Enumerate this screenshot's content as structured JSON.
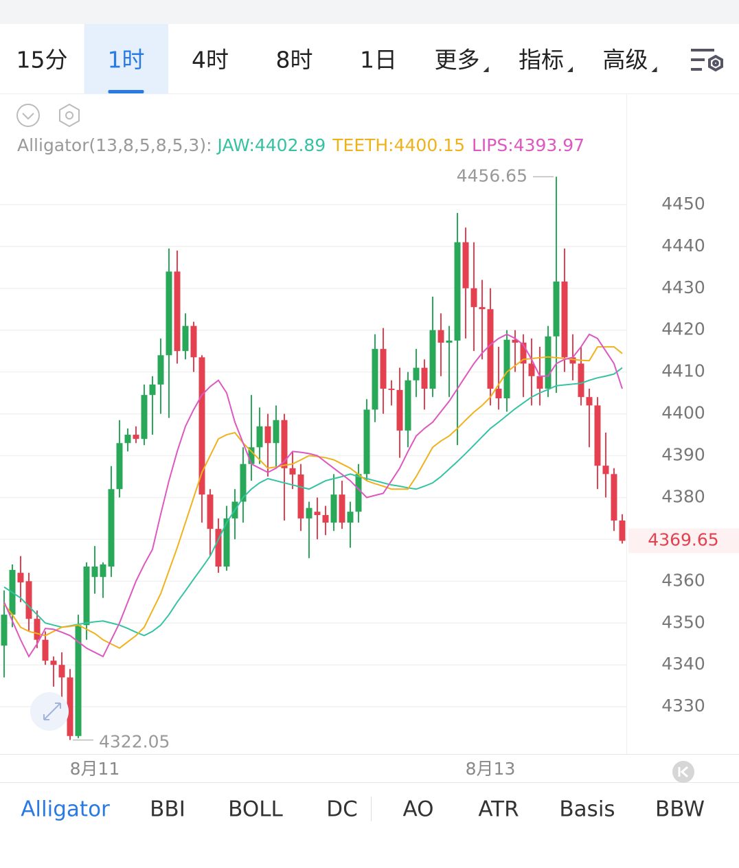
{
  "tabs": {
    "items": [
      "15分",
      "1时",
      "4时",
      "8时",
      "1日",
      "更多",
      "指标",
      "高级"
    ],
    "active": 1,
    "dropdowns": [
      5,
      6,
      7
    ]
  },
  "chart_data": {
    "type": "candlestick",
    "indicator_title": "Alligator(13,8,5,8,5,3):",
    "categories": [
      null,
      null,
      null,
      null,
      null,
      null,
      null,
      null,
      null,
      null,
      null,
      "8月11",
      null,
      null,
      null,
      null,
      null,
      null,
      null,
      null,
      null,
      null,
      null,
      null,
      null,
      null,
      null,
      null,
      null,
      null,
      null,
      null,
      null,
      null,
      null,
      null,
      null,
      null,
      null,
      null,
      null,
      null,
      null,
      null,
      null,
      null,
      null,
      null,
      null,
      null,
      null,
      null,
      null,
      null,
      null,
      null,
      null,
      null,
      null,
      "8月13",
      null,
      null,
      null,
      null,
      null,
      null,
      null,
      null,
      null,
      null,
      null,
      null,
      null,
      null,
      null,
      null
    ],
    "open": [
      4344.6,
      4352,
      4362,
      4360,
      4351,
      4346,
      4341,
      4340,
      4337,
      4323,
      4349.5,
      4361,
      4361,
      4363.5,
      4382,
      4393,
      4395,
      4394,
      4404.5,
      4407,
      4414,
      4434,
      4415,
      4421,
      4413.5,
      4380.7,
      4372.5,
      4363.5,
      4375,
      4379,
      4388,
      4392,
      4397,
      4393,
      4398.5,
      4387,
      4385.5,
      4375,
      4376.6,
      4375.8,
      4374,
      4380.7,
      4374,
      4376.6,
      4385.6,
      4401,
      4415.5,
      4406,
      4405.7,
      4396,
      4408,
      4411,
      4406,
      4420,
      4417,
      4417.5,
      4441,
      4430,
      4425.5,
      4425,
      4406,
      4403.7,
      4417.7,
      4417,
      4412,
      4409,
      4406,
      4418.5,
      4431.6,
      4413.5,
      4412,
      4404,
      4402,
      4387.6,
      4385.6,
      4374.5
    ],
    "high": [
      4357.8,
      4364,
      4366,
      4362,
      4353,
      4348,
      4342,
      4343,
      4339,
      4352,
      4364.5,
      4368.4,
      4364.5,
      4387.5,
      4398.5,
      4396.5,
      4397,
      4407,
      4409,
      4418,
      4439.5,
      4439,
      4424,
      4422,
      4414,
      4382,
      4375,
      4378,
      4382,
      4392,
      4404.5,
      4401.5,
      4400,
      4402,
      4400,
      4391,
      4388,
      4379,
      4380,
      4378,
      4385.6,
      4384,
      4379,
      4388,
      4403.5,
      4419,
      4420.5,
      4408,
      4411,
      4410,
      4415.5,
      4413,
      4428,
      4424,
      4421,
      4448,
      4444.5,
      4441,
      4432,
      4430,
      4416,
      4420,
      4420,
      4419,
      4418,
      4416,
      4421,
      4456.65,
      4439.5,
      4419,
      4416,
      4406,
      4404,
      4395.5,
      4387,
      4376
    ],
    "low": [
      4337,
      4349,
      4355,
      4348,
      4344,
      4340,
      4334.8,
      4332,
      4322.05,
      4322.5,
      4346,
      4357,
      4356,
      4361,
      4380,
      4391,
      4393,
      4392.5,
      4395,
      4400,
      4399,
      4412,
      4413,
      4410,
      4374,
      4366,
      4362,
      4362.5,
      4370,
      4374,
      4384,
      4388,
      4385,
      4387,
      4374.5,
      4382,
      4372,
      4365.5,
      4370,
      4371,
      4372,
      4372.5,
      4368,
      4374,
      4384,
      4398,
      4400,
      4402,
      4389.5,
      4392,
      4404,
      4401,
      4404,
      4409,
      4404,
      4392.5,
      4418,
      4415,
      4413,
      4402,
      4401,
      4400.5,
      4410,
      4404,
      4402,
      4402,
      4404,
      4405,
      4410,
      4408,
      4402,
      4392,
      4382,
      4380,
      4372,
      4369
    ],
    "close": [
      4352,
      4362.7,
      4359.7,
      4351,
      4346,
      4341,
      4340,
      4337,
      4323,
      4349.5,
      4363.5,
      4363.5,
      4364,
      4382,
      4393,
      4395,
      4394,
      4404.5,
      4407,
      4414,
      4434,
      4415,
      4421,
      4413.5,
      4380.7,
      4372.5,
      4363.5,
      4375,
      4379,
      4388,
      4392,
      4397,
      4393,
      4398.5,
      4387,
      4385.5,
      4375,
      4377.5,
      4375.8,
      4374,
      4380.7,
      4374,
      4376.6,
      4385.6,
      4401,
      4415.5,
      4406,
      4405.7,
      4396,
      4408,
      4411,
      4406,
      4420,
      4417,
      4417.5,
      4441,
      4430,
      4425.5,
      4425,
      4406,
      4403.7,
      4417.7,
      4417,
      4412,
      4409,
      4406,
      4418.5,
      4431.6,
      4413.5,
      4412,
      4404,
      4402,
      4387.6,
      4385.6,
      4374.5,
      4369.65
    ],
    "up_color": "#2aa85a",
    "down_color": "#e3414f",
    "series": [
      {
        "name": "JAW:4402.89",
        "color": "#35c2a2",
        "values": [
          4358.6,
          4357.3,
          4356,
          4354,
          4352,
          4350,
          4349.5,
          4349,
          4349.3,
          4349.7,
          4350,
          4350.3,
          4350.5,
          4350,
          4349.5,
          4348.7,
          4347.8,
          4347,
          4348,
          4349.5,
          4352,
          4355,
          4357.7,
          4360.5,
          4363.2,
          4366,
          4370,
          4374,
          4377,
          4380,
          4382,
          4383.5,
          4384.5,
          4384,
          4383.5,
          4383,
          4382.5,
          4382,
          4383,
          4384,
          4384.5,
          4385,
          4385.6,
          4385,
          4384.5,
          4384,
          4383.5,
          4383,
          4382.7,
          4382.3,
          4382,
          4382.7,
          4383.5,
          4385,
          4386.8,
          4388.6,
          4390.5,
          4392.5,
          4394.5,
          4396.5,
          4398,
          4399.6,
          4401.2,
          4402.6,
          4404,
          4405,
          4405.8,
          4406.7,
          4406.9,
          4407.1,
          4407.3,
          4408,
          4408.6,
          4409,
          4409.5,
          4411
        ]
      },
      {
        "name": "TEETH:4400.15",
        "color": "#efb21c",
        "values": [
          4354.5,
          4352,
          4349,
          4348,
          4347.5,
          4347,
          4348,
          4349,
          4349.2,
          4349.5,
          4348.5,
          4347.5,
          4346,
          4345,
          4344,
          4345.5,
          4347,
          4349,
          4353,
          4357,
          4362.5,
          4368,
          4374,
          4380,
          4386,
          4390,
          4394,
          4395,
          4395.5,
          4393,
          4391,
          4389,
          4387,
          4387.3,
          4387.7,
          4388,
          4389,
          4390,
          4389.8,
          4389.5,
          4389,
          4388,
          4387,
          4385.5,
          4384,
          4383.3,
          4382.7,
          4382,
          4382,
          4382,
          4385,
          4388.5,
          4392,
          4393.5,
          4394.7,
          4396.5,
          4398.5,
          4400.4,
          4402,
          4404,
          4407,
          4410,
          4411.5,
          4413,
          4413.2,
          4413.4,
          4413.6,
          4413.4,
          4413.2,
          4413,
          4412.8,
          4412.7,
          4416,
          4416,
          4416,
          4414.4
        ]
      },
      {
        "name": "LIPS:4393.97",
        "color": "#de57c0",
        "values": [
          4355,
          4350.5,
          4346,
          4342,
          4345,
          4348.7,
          4348.5,
          4347.8,
          4347,
          4345.5,
          4344,
          4343,
          4342,
          4346,
          4350,
          4355,
          4360,
          4364,
          4367.6,
          4376,
          4384,
          4391,
          4397,
          4401,
          4404.5,
          4406.5,
          4408,
          4405,
          4398,
          4393,
          4388,
          4387,
          4386,
          4387,
          4388.6,
          4391,
          4390.8,
          4390.5,
          4390,
          4388.5,
          4387,
          4385.5,
          4384,
          4382,
          4380,
          4380.5,
          4381,
          4384,
          4387,
          4391,
          4394.7,
          4396.5,
          4398,
          4400.5,
          4403,
          4406,
          4409,
          4412,
          4414.5,
          4416.5,
          4418,
          4419,
          4418,
          4416.5,
          4413,
          4409,
          4409,
          4412,
          4413,
          4413.5,
          4416,
          4419,
          4418,
          4415,
          4412,
          4406
        ]
      }
    ],
    "ylim": [
      4318.7,
      4459.5
    ],
    "yticks": [
      4330,
      4340,
      4350,
      4360,
      4370,
      4380,
      4390,
      4400,
      4410,
      4420,
      4430,
      4440,
      4450
    ],
    "grid": true
  },
  "indicator_tabs": {
    "items": [
      "Alligator",
      "BBI",
      "BOLL",
      "DC",
      "AO",
      "ATR",
      "Basis",
      "BBW"
    ],
    "active": 0
  }
}
